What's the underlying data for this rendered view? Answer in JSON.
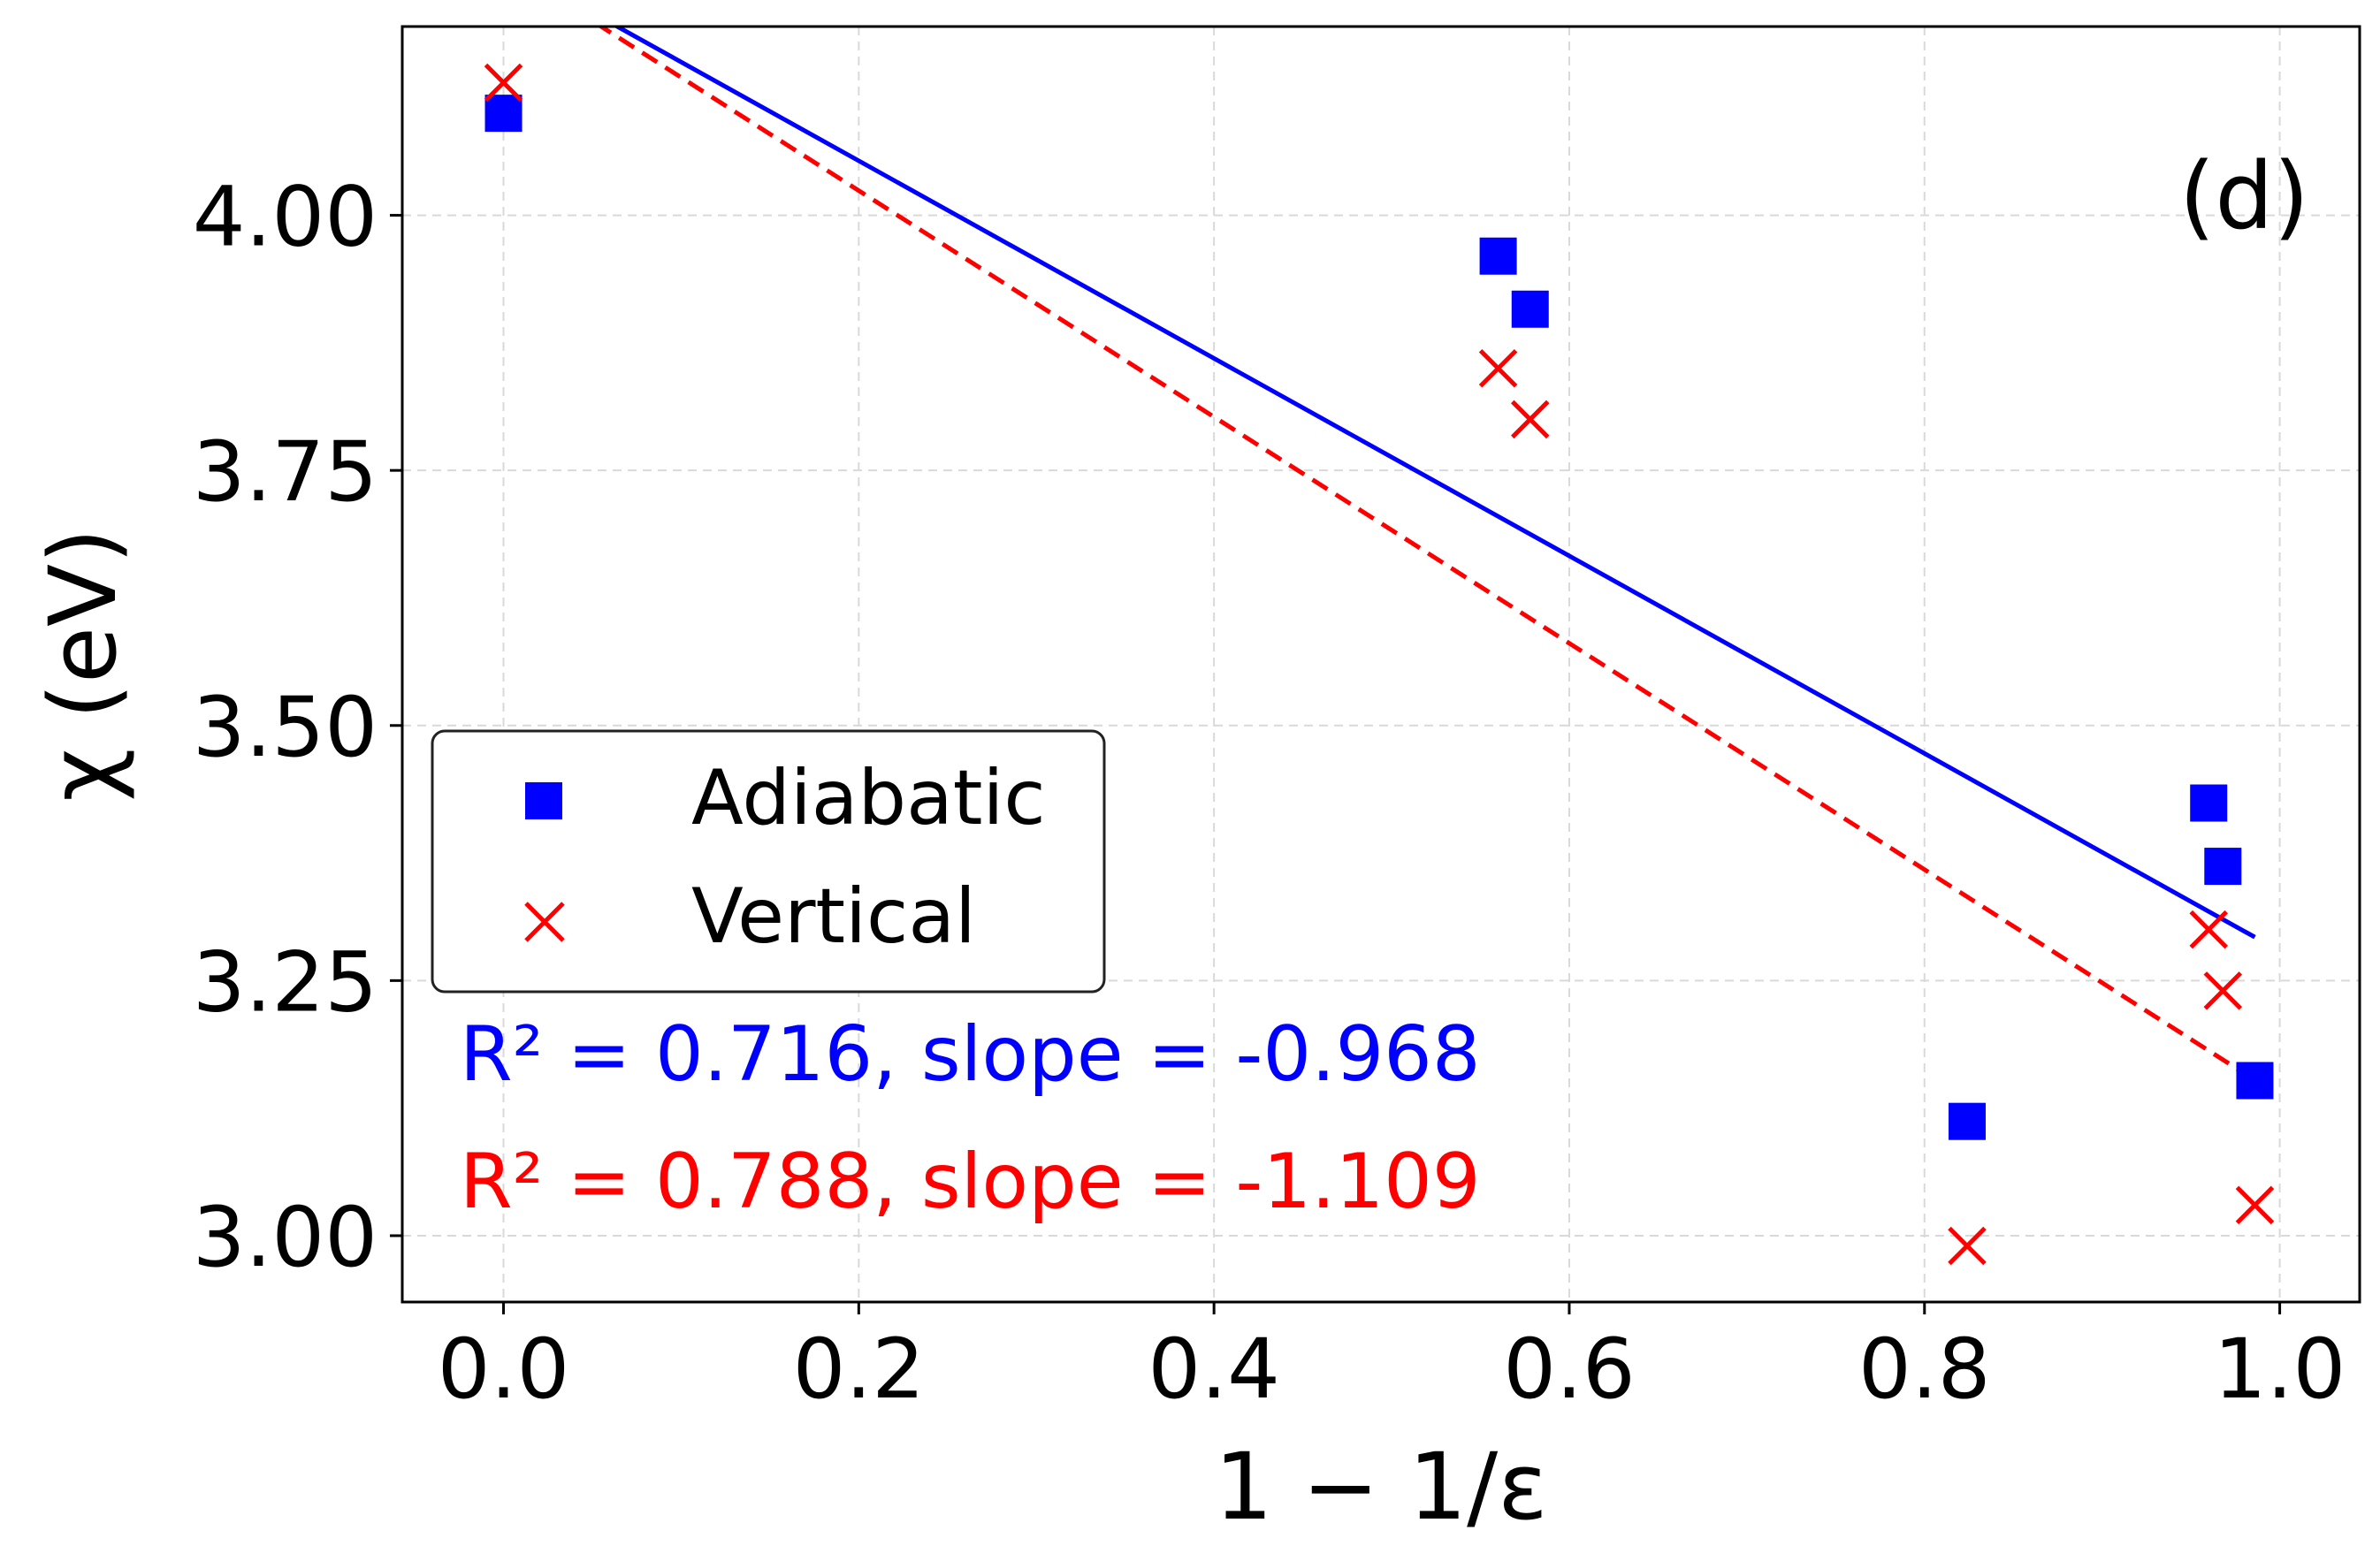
{
  "chart_data": {
    "type": "scatter",
    "panel_label": "(d)",
    "xlabel": "1 − 1/ε",
    "ylabel": "χ (eV)",
    "xlim": [
      -0.057,
      1.045
    ],
    "ylim": [
      2.935,
      4.185
    ],
    "xticks": [
      0.0,
      0.2,
      0.4,
      0.6,
      0.8,
      1.0
    ],
    "xtick_labels": [
      "0.0",
      "0.2",
      "0.4",
      "0.6",
      "0.8",
      "1.0"
    ],
    "yticks": [
      3.0,
      3.25,
      3.5,
      3.75,
      4.0
    ],
    "ytick_labels": [
      "3.00",
      "3.25",
      "3.50",
      "3.75",
      "4.00"
    ],
    "grid": true,
    "legend_position": "center-left",
    "series": [
      {
        "name": "Adiabatic",
        "marker": "square",
        "color": "#0000ff",
        "x": [
          0.0,
          0.56,
          0.578,
          0.824,
          0.96,
          0.968,
          0.986
        ],
        "y": [
          4.1,
          3.96,
          3.908,
          3.112,
          3.424,
          3.362,
          3.152
        ],
        "fit": {
          "style": "solid",
          "slope": -0.968,
          "intercept": 4.247,
          "x_range": [
            0.0,
            0.986
          ]
        }
      },
      {
        "name": "Vertical",
        "marker": "x",
        "color": "#ff0000",
        "x": [
          0.0,
          0.56,
          0.578,
          0.824,
          0.96,
          0.968,
          0.986
        ],
        "y": [
          4.13,
          3.85,
          3.8,
          2.99,
          3.3,
          3.24,
          3.03
        ],
        "fit": {
          "style": "dashed",
          "slope": -1.109,
          "intercept": 4.246,
          "x_range": [
            0.0,
            0.986
          ]
        }
      }
    ],
    "annotations": [
      {
        "text": "R² = 0.716, slope = -0.968",
        "color": "#0000ff"
      },
      {
        "text": "R² = 0.788, slope = -1.109",
        "color": "#ff0000"
      }
    ]
  }
}
